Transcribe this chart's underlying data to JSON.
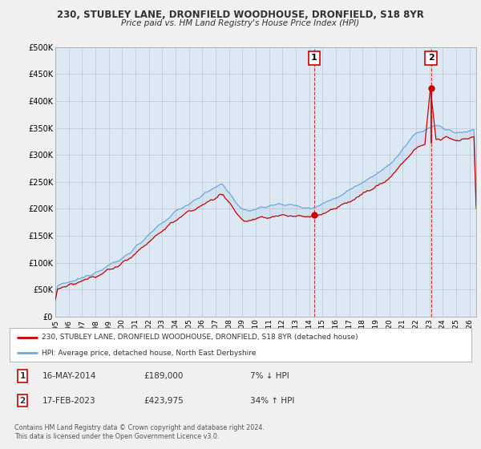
{
  "title": "230, STUBLEY LANE, DRONFIELD WOODHOUSE, DRONFIELD, S18 8YR",
  "subtitle": "Price paid vs. HM Land Registry's House Price Index (HPI)",
  "ylabel_ticks": [
    "£0",
    "£50K",
    "£100K",
    "£150K",
    "£200K",
    "£250K",
    "£300K",
    "£350K",
    "£400K",
    "£450K",
    "£500K"
  ],
  "ytick_values": [
    0,
    50000,
    100000,
    150000,
    200000,
    250000,
    300000,
    350000,
    400000,
    450000,
    500000
  ],
  "ylim": [
    0,
    500000
  ],
  "xlim_start": 1995.0,
  "xlim_end": 2026.5,
  "hpi_color": "#6fa8dc",
  "price_color": "#cc0000",
  "marker1_date": 2014.37,
  "marker2_date": 2023.12,
  "marker1_price": 189000,
  "marker2_price": 423975,
  "legend_line1": "230, STUBLEY LANE, DRONFIELD WOODHOUSE, DRONFIELD, S18 8YR (detached house)",
  "legend_line2": "HPI: Average price, detached house, North East Derbyshire",
  "annotation1_label": "1",
  "annotation2_label": "2",
  "footer": "Contains HM Land Registry data © Crown copyright and database right 2024.\nThis data is licensed under the Open Government Licence v3.0.",
  "bg_color": "#f0f0f0",
  "plot_bg_color": "#dce9f5",
  "plot_bg_color2": "#ffffff",
  "xticks": [
    1995,
    1996,
    1997,
    1998,
    1999,
    2000,
    2001,
    2002,
    2003,
    2004,
    2005,
    2006,
    2007,
    2008,
    2009,
    2010,
    2011,
    2012,
    2013,
    2014,
    2015,
    2016,
    2017,
    2018,
    2019,
    2020,
    2021,
    2022,
    2023,
    2024,
    2025,
    2026
  ],
  "title_fontsize": 8.5,
  "subtitle_fontsize": 7.5
}
